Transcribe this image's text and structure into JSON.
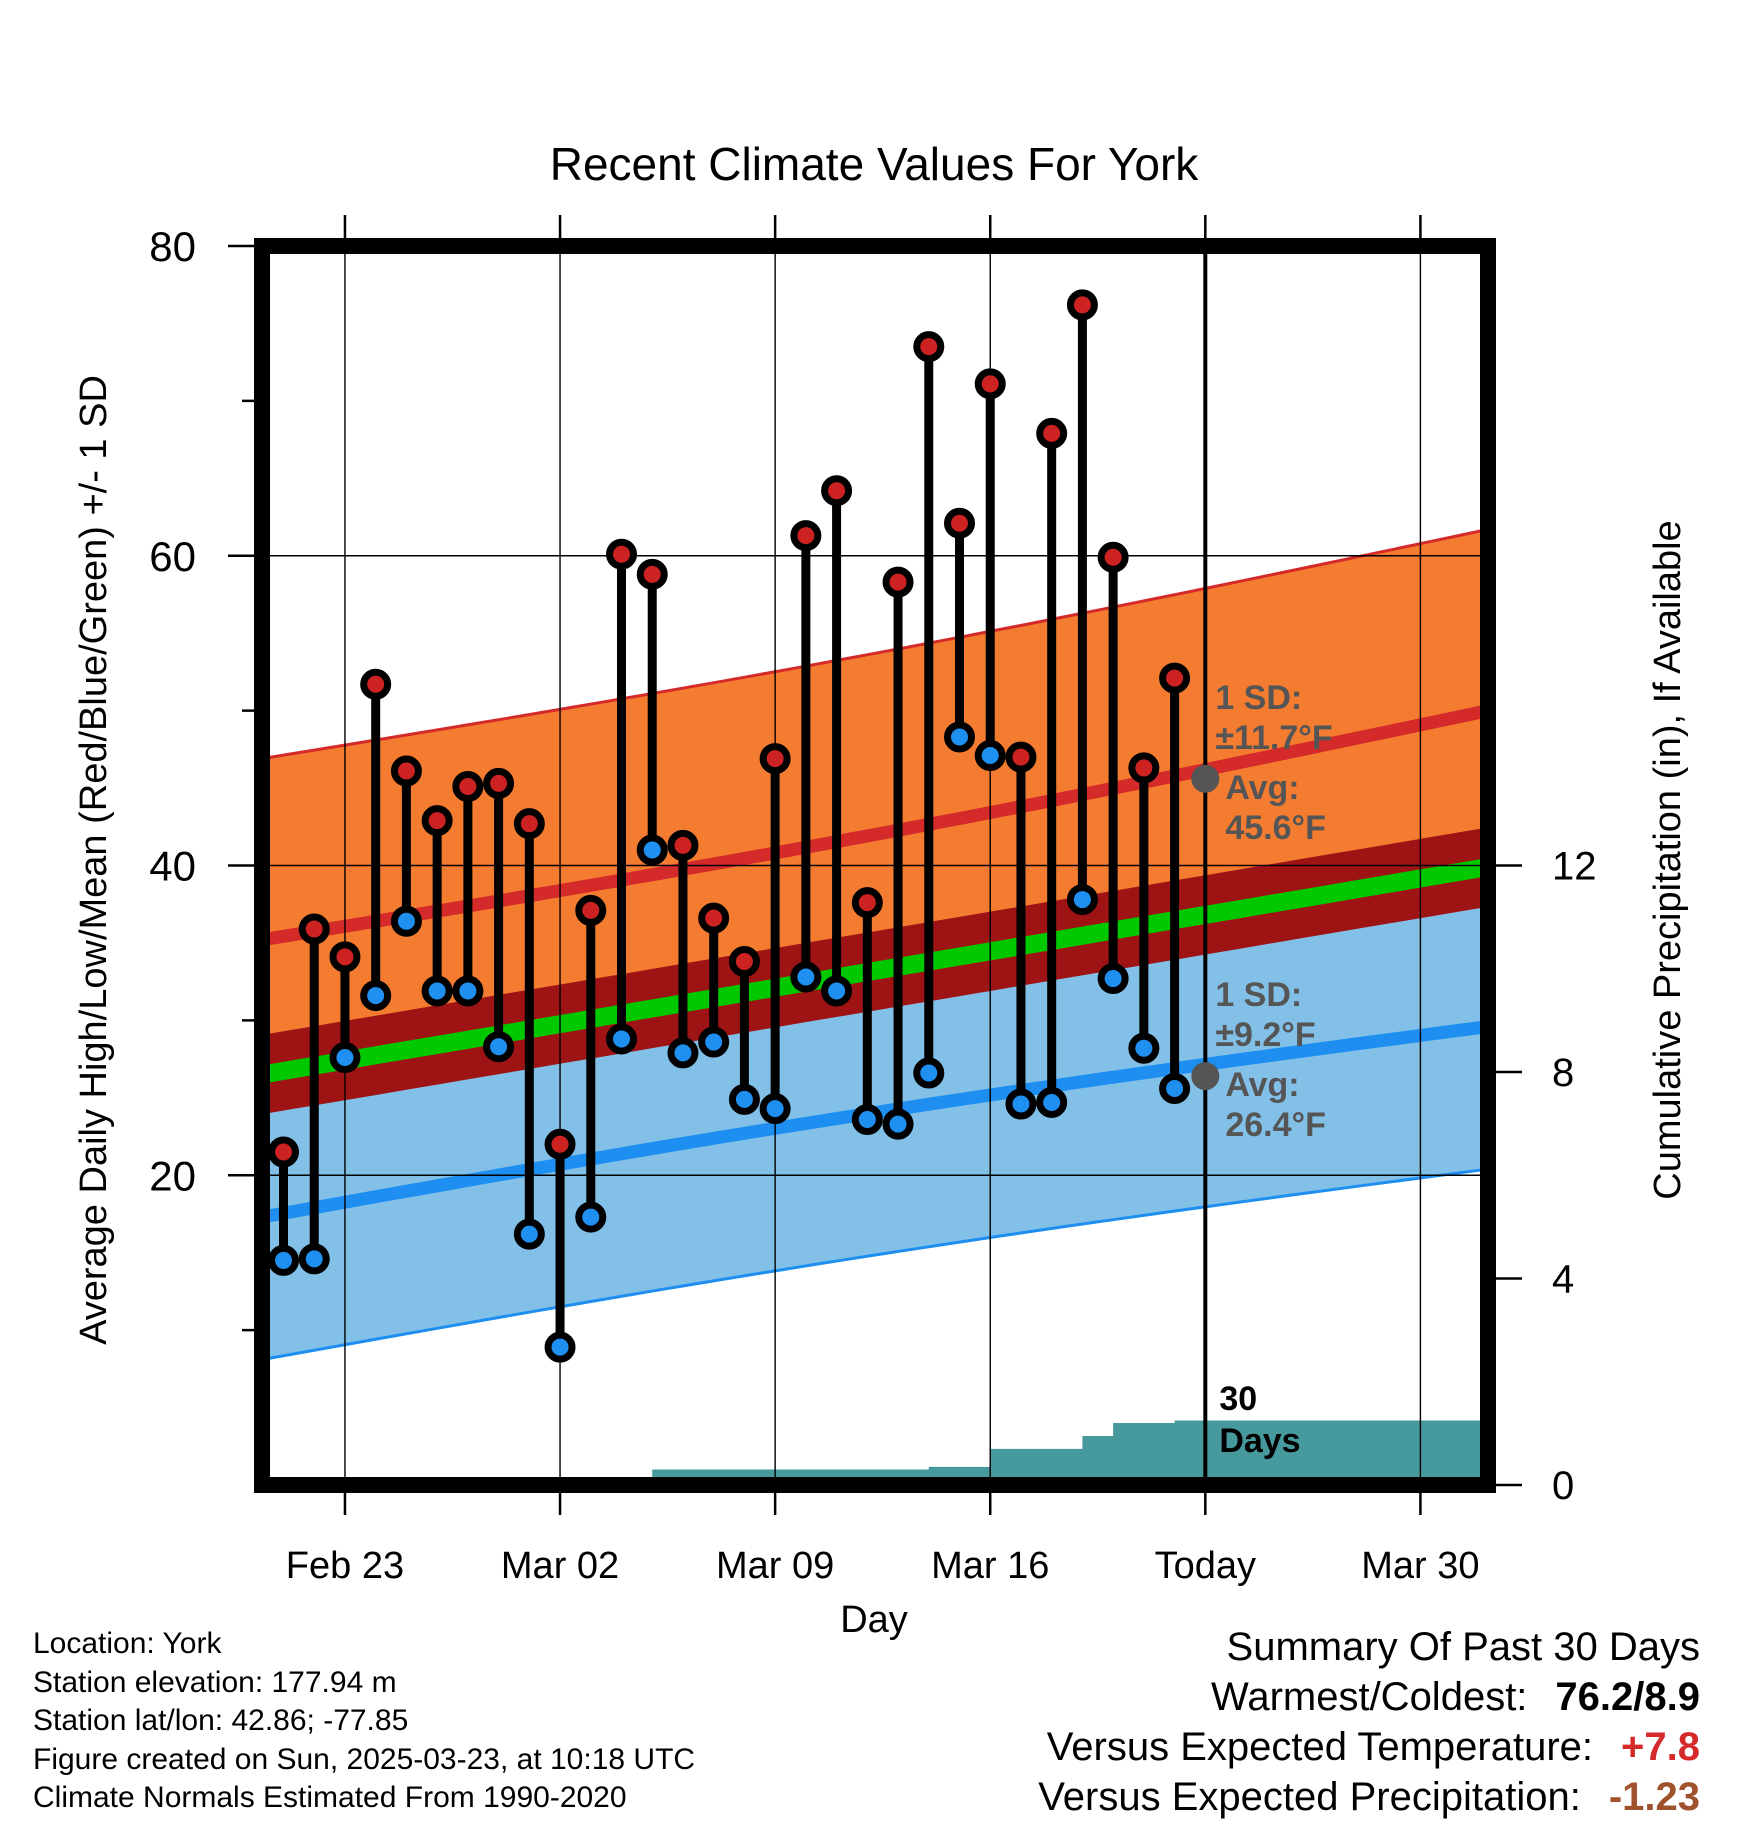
{
  "chart_data": {
    "type": "line",
    "title": "Recent Climate Values For York",
    "xlabel": "Day",
    "ylabel_left": "Average Daily High/Low/Mean (Red/Blue/Green) +/- 1 SD",
    "ylabel_right": "Cumulative Precipitation (in), If Available",
    "ylim_left": [
      0,
      80
    ],
    "ylim_right": [
      0,
      24
    ],
    "xlim": [
      -2.7,
      37.2
    ],
    "x_ticks": [
      {
        "x": 0,
        "label": "Feb 23"
      },
      {
        "x": 7,
        "label": "Mar 02"
      },
      {
        "x": 14,
        "label": "Mar 09"
      },
      {
        "x": 21,
        "label": "Mar 16"
      },
      {
        "x": 28,
        "label": "Today"
      },
      {
        "x": 35,
        "label": "Mar 30"
      }
    ],
    "y_ticks_left": [
      20,
      40,
      60,
      80
    ],
    "y_ticks_right": [
      0,
      4,
      8,
      12
    ],
    "grid": true,
    "today_x": 28,
    "colors": {
      "high_band": "#f47c30",
      "high_line": "#d42a2a",
      "low_band": "#82c0e8",
      "low_line": "#1e8ff0",
      "mean_band": "#9e1414",
      "mean_line": "#00c800",
      "precip": "#46999c",
      "high_point": "#cc2222",
      "low_point": "#1f8ff0"
    },
    "normals": {
      "x": [
        -2.7,
        37.2
      ],
      "high_avg": [
        35.2,
        50.0
      ],
      "high_sd": 11.7,
      "low_avg": [
        17.3,
        29.6
      ],
      "low_sd": 9.2,
      "mean_avg": [
        26.5,
        39.9
      ],
      "mean_sd": 1.6
    },
    "annotations": {
      "high": {
        "sd_label": "1 SD:",
        "sd_value": "±11.7°F",
        "avg_label": "Avg:",
        "avg_value": "45.6°F",
        "y": 45.6
      },
      "low": {
        "sd_label": "1 SD:",
        "sd_value": "±9.2°F",
        "avg_label": "Avg:",
        "avg_value": "26.4°F",
        "y": 26.4
      },
      "window": {
        "line1": "30",
        "line2": "Days"
      }
    },
    "series": [
      {
        "name": "High",
        "x": [
          -2,
          -1,
          0,
          1,
          2,
          3,
          4,
          5,
          6,
          7,
          8,
          9,
          10,
          11,
          12,
          13,
          14,
          15,
          16,
          17,
          18,
          19,
          20,
          21,
          22,
          23,
          24,
          25,
          26,
          27
        ],
        "values": [
          21.5,
          35.9,
          34.1,
          51.7,
          46.1,
          42.9,
          45.1,
          45.3,
          42.7,
          22.0,
          37.1,
          60.1,
          58.8,
          41.3,
          36.6,
          33.8,
          46.9,
          61.3,
          64.2,
          37.6,
          58.3,
          73.5,
          62.1,
          71.1,
          47.0,
          67.9,
          76.2,
          59.9,
          46.3,
          52.1
        ]
      },
      {
        "name": "Low",
        "x": [
          -2,
          -1,
          0,
          1,
          2,
          3,
          4,
          5,
          6,
          7,
          8,
          9,
          10,
          11,
          12,
          13,
          14,
          15,
          16,
          17,
          18,
          19,
          20,
          21,
          22,
          23,
          24,
          25,
          26,
          27
        ],
        "values": [
          14.5,
          14.6,
          27.6,
          31.6,
          36.4,
          31.9,
          31.9,
          28.3,
          16.2,
          8.9,
          17.3,
          28.8,
          41.0,
          27.9,
          28.6,
          24.9,
          24.3,
          32.8,
          31.9,
          23.6,
          23.3,
          26.6,
          48.3,
          47.1,
          24.6,
          24.7,
          37.8,
          32.7,
          28.2,
          25.6
        ]
      },
      {
        "name": "Precipitation",
        "axis": "right",
        "x": [
          6,
          9,
          10,
          19,
          21,
          23,
          24,
          25,
          26,
          27,
          28,
          37.2
        ],
        "values": [
          0,
          0,
          0.3,
          0.35,
          0.7,
          0.7,
          0.95,
          1.2,
          1.2,
          1.25,
          1.25,
          1.25
        ]
      }
    ]
  },
  "footer": {
    "location": "Location: York",
    "elevation": "Station elevation: 177.94 m",
    "latlon": "Station lat/lon: 42.86; -77.85",
    "created": "Figure created on Sun, 2025-03-23, at 10:18 UTC",
    "normals": "Climate Normals Estimated From 1990-2020"
  },
  "summary": {
    "heading": "Summary Of Past 30 Days",
    "warmest_label": "Warmest/Coldest:",
    "warmest_value": "76.2/8.9",
    "temp_label": "Versus Expected Temperature:",
    "temp_value": "+7.8",
    "temp_color": "#d42a2a",
    "precip_label": "Versus Expected Precipitation:",
    "precip_value": "-1.23",
    "precip_color": "#a0522d"
  }
}
